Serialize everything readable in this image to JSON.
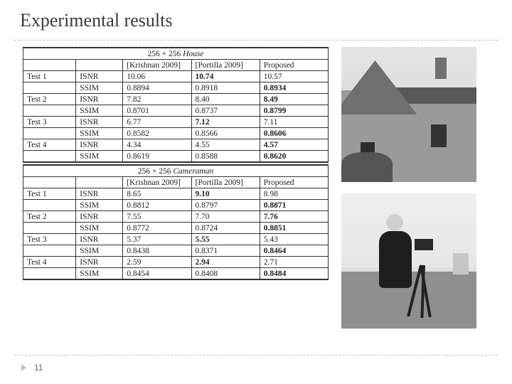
{
  "title": "Experimental results",
  "page_number": "11",
  "tables": {
    "house": {
      "caption_prefix": "256 × 256 ",
      "caption_name": "House",
      "headers": [
        "",
        "",
        "[Krishnan 2009]",
        "[Portilla 2009]",
        "Proposed"
      ],
      "rows": [
        {
          "test": "Test 1",
          "metric": "ISNR",
          "v1": "10.06",
          "v2": "10.74",
          "v3": "10.57",
          "bold": "v2"
        },
        {
          "test": "",
          "metric": "SSIM",
          "v1": "0.8894",
          "v2": "0.8918",
          "v3": "0.8934",
          "bold": "v3"
        },
        {
          "test": "Test 2",
          "metric": "ISNR",
          "v1": "7.82",
          "v2": "8.40",
          "v3": "8.49",
          "bold": "v3"
        },
        {
          "test": "",
          "metric": "SSIM",
          "v1": "0.8701",
          "v2": "0.8737",
          "v3": "0.8799",
          "bold": "v3"
        },
        {
          "test": "Test 3",
          "metric": "ISNR",
          "v1": "6.77",
          "v2": "7.12",
          "v3": "7.11",
          "bold": "v2"
        },
        {
          "test": "",
          "metric": "SSIM",
          "v1": "0.8582",
          "v2": "0.8566",
          "v3": "0.8606",
          "bold": "v3"
        },
        {
          "test": "Test 4",
          "metric": "ISNR",
          "v1": "4.34",
          "v2": "4.55",
          "v3": "4.57",
          "bold": "v3"
        },
        {
          "test": "",
          "metric": "SSIM",
          "v1": "0.8619",
          "v2": "0.8588",
          "v3": "0.8620",
          "bold": "v3"
        }
      ]
    },
    "cameraman": {
      "caption_prefix": "256 × 256 ",
      "caption_name": "Cameraman",
      "headers": [
        "",
        "",
        "[Krishnan 2009]",
        "[Portilla 2009]",
        "Proposed"
      ],
      "rows": [
        {
          "test": "Test 1",
          "metric": "ISNR",
          "v1": "8.65",
          "v2": "9.10",
          "v3": "8.98",
          "bold": "v2"
        },
        {
          "test": "",
          "metric": "SSIM",
          "v1": "0.8812",
          "v2": "0.8797",
          "v3": "0.8871",
          "bold": "v3"
        },
        {
          "test": "Test 2",
          "metric": "ISNR",
          "v1": "7.55",
          "v2": "7.70",
          "v3": "7.76",
          "bold": "v3"
        },
        {
          "test": "",
          "metric": "SSIM",
          "v1": "0.8772",
          "v2": "0.8724",
          "v3": "0.8851",
          "bold": "v3"
        },
        {
          "test": "Test 3",
          "metric": "ISNR",
          "v1": "5.37",
          "v2": "5.55",
          "v3": "5.43",
          "bold": "v2"
        },
        {
          "test": "",
          "metric": "SSIM",
          "v1": "0.8438",
          "v2": "0.8371",
          "v3": "0.8464",
          "bold": "v3"
        },
        {
          "test": "Test 4",
          "metric": "ISNR",
          "v1": "2.59",
          "v2": "2.94",
          "v3": "2.71",
          "bold": "v2"
        },
        {
          "test": "",
          "metric": "SSIM",
          "v1": "0.8454",
          "v2": "0.8408",
          "v3": "0.8484",
          "bold": "v3"
        }
      ]
    }
  },
  "images": {
    "house_alt": "House grayscale test image",
    "cameraman_alt": "Cameraman grayscale test image"
  },
  "style": {
    "title_fontsize": 26,
    "title_color": "#3a3a3a",
    "table_fontsize": 11.5,
    "border_color": "#333333",
    "dashed_color": "#b8c0c5",
    "background": "#ffffff"
  }
}
